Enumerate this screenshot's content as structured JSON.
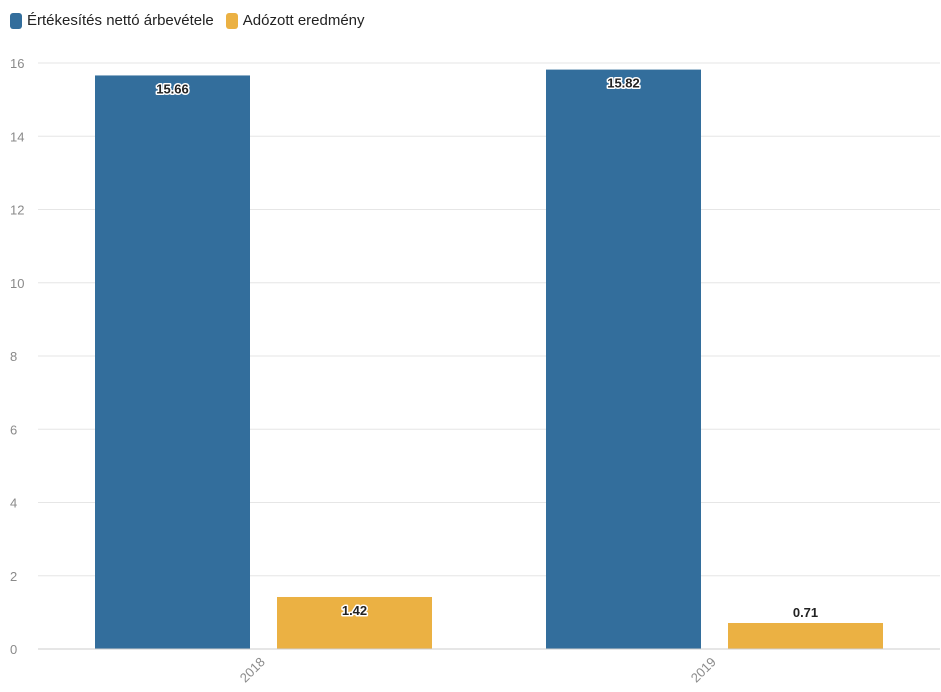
{
  "chart_data": {
    "type": "bar",
    "categories": [
      "2018",
      "2019"
    ],
    "series": [
      {
        "name": "Értékesítés nettó árbevétele",
        "values": [
          15.66,
          15.82
        ],
        "color": "#336e9c"
      },
      {
        "name": "Adózott eredmény",
        "values": [
          1.42,
          0.71
        ],
        "color": "#ebb143"
      }
    ],
    "data_labels": [
      [
        "15.66",
        "15.82"
      ],
      [
        "1.42",
        "0.71"
      ]
    ],
    "ylim": [
      0,
      16
    ],
    "yticks": [
      0,
      2,
      4,
      6,
      8,
      10,
      12,
      14,
      16
    ],
    "grid": true,
    "legend": "top-left",
    "xlabel": "",
    "ylabel": ""
  }
}
